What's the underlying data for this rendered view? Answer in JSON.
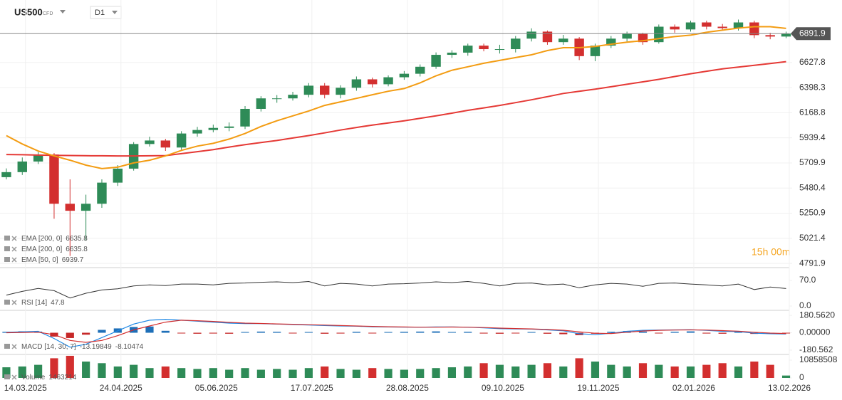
{
  "header": {
    "symbol": "US500",
    "badge": "CFD",
    "timeframe": "D1"
  },
  "current_price": 6891.9,
  "countdown": "15h 00m",
  "chart_data": [
    {
      "type": "candlestick",
      "grid": true,
      "up_color": "#2e8b57",
      "down_color": "#d32f2f",
      "xlim": [
        0,
        248
      ],
      "xticks": [
        {
          "value": 8,
          "label": "14.03.2025"
        },
        {
          "value": 38,
          "label": "24.04.2025"
        },
        {
          "value": 68,
          "label": "05.06.2025"
        },
        {
          "value": 98,
          "label": "17.07.2025"
        },
        {
          "value": 128,
          "label": "28.08.2025"
        },
        {
          "value": 158,
          "label": "09.10.2025"
        },
        {
          "value": 188,
          "label": "19.11.2025"
        },
        {
          "value": 218,
          "label": "02.01.2026"
        },
        {
          "value": 248,
          "label": "13.02.2026"
        }
      ],
      "ylim": [
        4760,
        7199
      ],
      "yticks": [
        4791.9,
        5021.4,
        5250.9,
        5480.4,
        5709.9,
        5939.4,
        6168.8,
        6398.3,
        6627.8
      ],
      "x": [
        2,
        7,
        12,
        17,
        22,
        27,
        32,
        37,
        42,
        47,
        52,
        57,
        62,
        67,
        72,
        77,
        82,
        87,
        92,
        97,
        102,
        107,
        112,
        117,
        122,
        127,
        132,
        137,
        142,
        147,
        152,
        157,
        162,
        167,
        172,
        177,
        182,
        187,
        192,
        197,
        202,
        207,
        212,
        217,
        222,
        227,
        232,
        237,
        242,
        247
      ],
      "open": [
        5580,
        5626,
        5723,
        5787,
        5337,
        5273,
        5337,
        5530,
        5658,
        5883,
        5915,
        5851,
        5979,
        6011,
        6030,
        6043,
        6204,
        6300,
        6300,
        6333,
        6416,
        6333,
        6397,
        6474,
        6429,
        6493,
        6525,
        6589,
        6698,
        6718,
        6782,
        6750,
        6750,
        6846,
        6910,
        6814,
        6846,
        6686,
        6782,
        6846,
        6891,
        6814,
        6955,
        6930,
        6994,
        6955,
        6942,
        6994,
        6878,
        6865
      ],
      "high": [
        5660,
        5760,
        5810,
        5800,
        5560,
        5420,
        5560,
        5690,
        5900,
        5950,
        5930,
        6000,
        6040,
        6060,
        6080,
        6230,
        6320,
        6330,
        6360,
        6440,
        6440,
        6420,
        6500,
        6490,
        6510,
        6550,
        6610,
        6720,
        6740,
        6800,
        6800,
        6790,
        6870,
        6940,
        6920,
        6880,
        6860,
        6800,
        6870,
        6910,
        6900,
        6975,
        6975,
        7010,
        7010,
        6980,
        7020,
        7010,
        6900,
        6910
      ],
      "low": [
        5560,
        5600,
        5700,
        5200,
        4860,
        5000,
        5300,
        5500,
        5640,
        5860,
        5820,
        5830,
        5950,
        5990,
        6000,
        6020,
        6180,
        6260,
        6280,
        6310,
        6300,
        6300,
        6370,
        6400,
        6410,
        6470,
        6500,
        6570,
        6670,
        6690,
        6730,
        6710,
        6720,
        6820,
        6790,
        6790,
        6650,
        6640,
        6760,
        6820,
        6790,
        6800,
        6900,
        6910,
        6930,
        6920,
        6920,
        6850,
        6840,
        6850
      ],
      "close": [
        5626,
        5723,
        5787,
        5337,
        5273,
        5337,
        5530,
        5658,
        5883,
        5915,
        5851,
        5979,
        6011,
        6030,
        6043,
        6204,
        6300,
        6300,
        6333,
        6416,
        6333,
        6397,
        6474,
        6429,
        6493,
        6525,
        6589,
        6698,
        6718,
        6782,
        6750,
        6750,
        6846,
        6910,
        6814,
        6846,
        6686,
        6782,
        6846,
        6891,
        6814,
        6955,
        6930,
        6994,
        6955,
        6942,
        6994,
        6878,
        6865,
        6891.9
      ],
      "series": [
        {
          "name": "EMA [200, 0]",
          "color": "#e53935",
          "values": [
            5787,
            5785,
            5782,
            5780,
            5778,
            5776,
            5775,
            5774,
            5774,
            5775,
            5777,
            5795,
            5813,
            5832,
            5855,
            5877,
            5896,
            5915,
            5938,
            5960,
            5985,
            6011,
            6034,
            6056,
            6075,
            6095,
            6118,
            6140,
            6165,
            6191,
            6213,
            6236,
            6261,
            6287,
            6316,
            6345,
            6365,
            6384,
            6406,
            6429,
            6451,
            6474,
            6500,
            6525,
            6548,
            6570,
            6586,
            6602,
            6619,
            6635.8
          ]
        },
        {
          "name": "EMA [50, 0]",
          "color": "#f39c12",
          "values": [
            5960,
            5883,
            5819,
            5774,
            5735,
            5690,
            5658,
            5671,
            5710,
            5735,
            5774,
            5825,
            5864,
            5889,
            5928,
            5979,
            6043,
            6095,
            6140,
            6185,
            6236,
            6268,
            6300,
            6333,
            6365,
            6390,
            6442,
            6506,
            6557,
            6589,
            6621,
            6647,
            6673,
            6698,
            6737,
            6763,
            6763,
            6775,
            6795,
            6814,
            6827,
            6846,
            6865,
            6878,
            6904,
            6923,
            6942,
            6955,
            6955,
            6939.7
          ]
        }
      ],
      "legend": [
        {
          "label": "EMA [200, 0]",
          "value": 6635.8
        },
        {
          "label": "EMA [200, 0]",
          "value": 6635.8
        },
        {
          "label": "EMA [50, 0]",
          "value": 6939.7
        }
      ]
    },
    {
      "type": "line",
      "grid": false,
      "color": "#333333",
      "ylim": [
        -9.7,
        103
      ],
      "yticks": [
        {
          "value": 70,
          "label": "70.0"
        },
        {
          "value": 0,
          "label": "0.0"
        }
      ],
      "values": [
        30,
        40,
        48,
        42,
        22,
        35,
        44,
        47,
        55,
        58,
        56,
        60,
        60,
        58,
        62,
        63,
        65,
        66,
        64,
        67,
        55,
        62,
        60,
        55,
        60,
        61,
        63,
        66,
        64,
        67,
        62,
        55,
        62,
        63,
        58,
        60,
        50,
        58,
        62,
        60,
        54,
        62,
        63,
        60,
        58,
        55,
        60,
        45,
        52,
        47.8
      ],
      "legend": [
        {
          "label": "RSI [14]",
          "value": 47.8
        }
      ]
    },
    {
      "type": "bar",
      "grid": false,
      "color_rule": "sign",
      "up_color": "#1e6fb8",
      "down_color": "#c62828",
      "ylim": [
        -218.2,
        225.7
      ],
      "yticks": [
        {
          "value": 180.562,
          "label": "180.5620"
        },
        {
          "value": 0,
          "label": "0.00000"
        },
        -180.562
      ],
      "values": [
        10,
        15,
        12,
        -40,
        -55,
        -20,
        30,
        45,
        60,
        65,
        20,
        -5,
        -10,
        -8,
        -10,
        8,
        12,
        10,
        -5,
        8,
        -10,
        -8,
        10,
        -6,
        8,
        10,
        12,
        14,
        8,
        10,
        -8,
        -10,
        -5,
        8,
        -10,
        -15,
        -25,
        -10,
        10,
        18,
        12,
        -5,
        10,
        14,
        -8,
        -10,
        8,
        -12,
        -10,
        -5.1
      ],
      "series": [
        {
          "name": "MACD",
          "color": "#1e88e5",
          "values": [
            5,
            10,
            15,
            -60,
            -150,
            -120,
            -50,
            20,
            90,
            130,
            140,
            130,
            120,
            110,
            100,
            95,
            95,
            90,
            85,
            80,
            75,
            70,
            68,
            62,
            60,
            58,
            58,
            60,
            60,
            58,
            50,
            42,
            40,
            38,
            30,
            20,
            -10,
            -20,
            -5,
            15,
            25,
            28,
            30,
            32,
            25,
            15,
            12,
            -5,
            -10,
            -13.19849
          ]
        },
        {
          "name": "Signal",
          "color": "#d32f2f",
          "values": [
            0,
            3,
            6,
            -20,
            -80,
            -100,
            -80,
            -30,
            30,
            70,
            110,
            130,
            125,
            118,
            108,
            100,
            96,
            92,
            88,
            84,
            80,
            75,
            70,
            66,
            62,
            60,
            58,
            58,
            59,
            58,
            54,
            48,
            44,
            40,
            34,
            26,
            10,
            -5,
            -8,
            5,
            18,
            25,
            28,
            30,
            28,
            22,
            16,
            5,
            -4,
            -8.10474
          ]
        }
      ],
      "legend": [
        {
          "label": "MACD [14, 30, 7]",
          "value": [
            -13.19849,
            -8.10474
          ]
        }
      ]
    },
    {
      "type": "bar",
      "grid": false,
      "color_rule": "candle",
      "up_color": "#2e8b57",
      "down_color": "#d32f2f",
      "ylim": [
        -3909000,
        13899000
      ],
      "yticks": [
        10858508,
        0
      ],
      "values": [
        6500000,
        7000000,
        8000000,
        12000000,
        13500000,
        10000000,
        9000000,
        7000000,
        8000000,
        6000000,
        7000000,
        6000000,
        5500000,
        6000000,
        5000000,
        6000000,
        5000000,
        5500000,
        5000000,
        6000000,
        7000000,
        5500000,
        5000000,
        6000000,
        5500000,
        5000000,
        5500000,
        6000000,
        6500000,
        7000000,
        9000000,
        8000000,
        7000000,
        8000000,
        9000000,
        7000000,
        12000000,
        10000000,
        8000000,
        7000000,
        9000000,
        8000000,
        7000000,
        7000000,
        8000000,
        9000000,
        7000000,
        10000000,
        8000000,
        1463214
      ],
      "legend": [
        {
          "label": "Volume",
          "value": 1463214
        }
      ]
    }
  ]
}
